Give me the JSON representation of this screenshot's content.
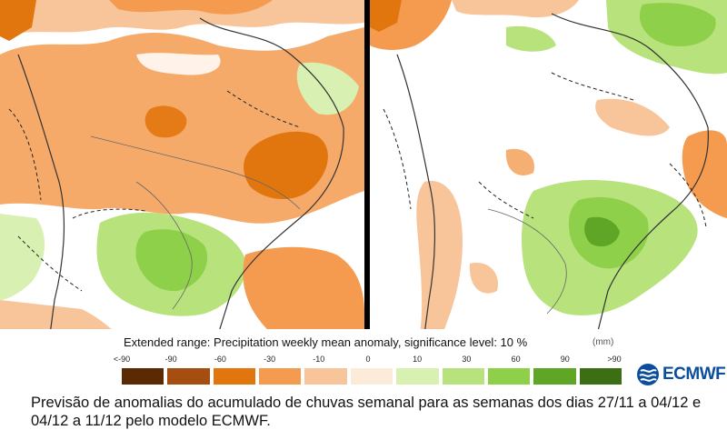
{
  "legend": {
    "title": "Extended range: Precipitation weekly mean anomaly, significance level: 10 %",
    "unit": "(mm)",
    "ticks": [
      "<-90",
      "-90",
      "-60",
      "-30",
      "-10",
      "0",
      "10",
      "30",
      "60",
      "90",
      ">90"
    ],
    "colors": [
      "#5a2a05",
      "#a64e12",
      "#e2760e",
      "#f49b50",
      "#f8c59a",
      "#fdebd9",
      "#d9f0b3",
      "#b7e27c",
      "#8fd04a",
      "#5fa627",
      "#3c6e14"
    ]
  },
  "logo": {
    "text": "ECMWF"
  },
  "caption": "Previsão de anomalias do acumulado de chuvas semanal para as semanas dos dias 27/11 a 04/12 e 04/12 a 11/12 pelo modelo ECMWF.",
  "maps": [
    {
      "week": "27/11 a 04/12",
      "dominant_anomaly": "negative north/central, positive south"
    },
    {
      "week": "04/12 a 11/12",
      "dominant_anomaly": "positive south/southeast"
    }
  ]
}
